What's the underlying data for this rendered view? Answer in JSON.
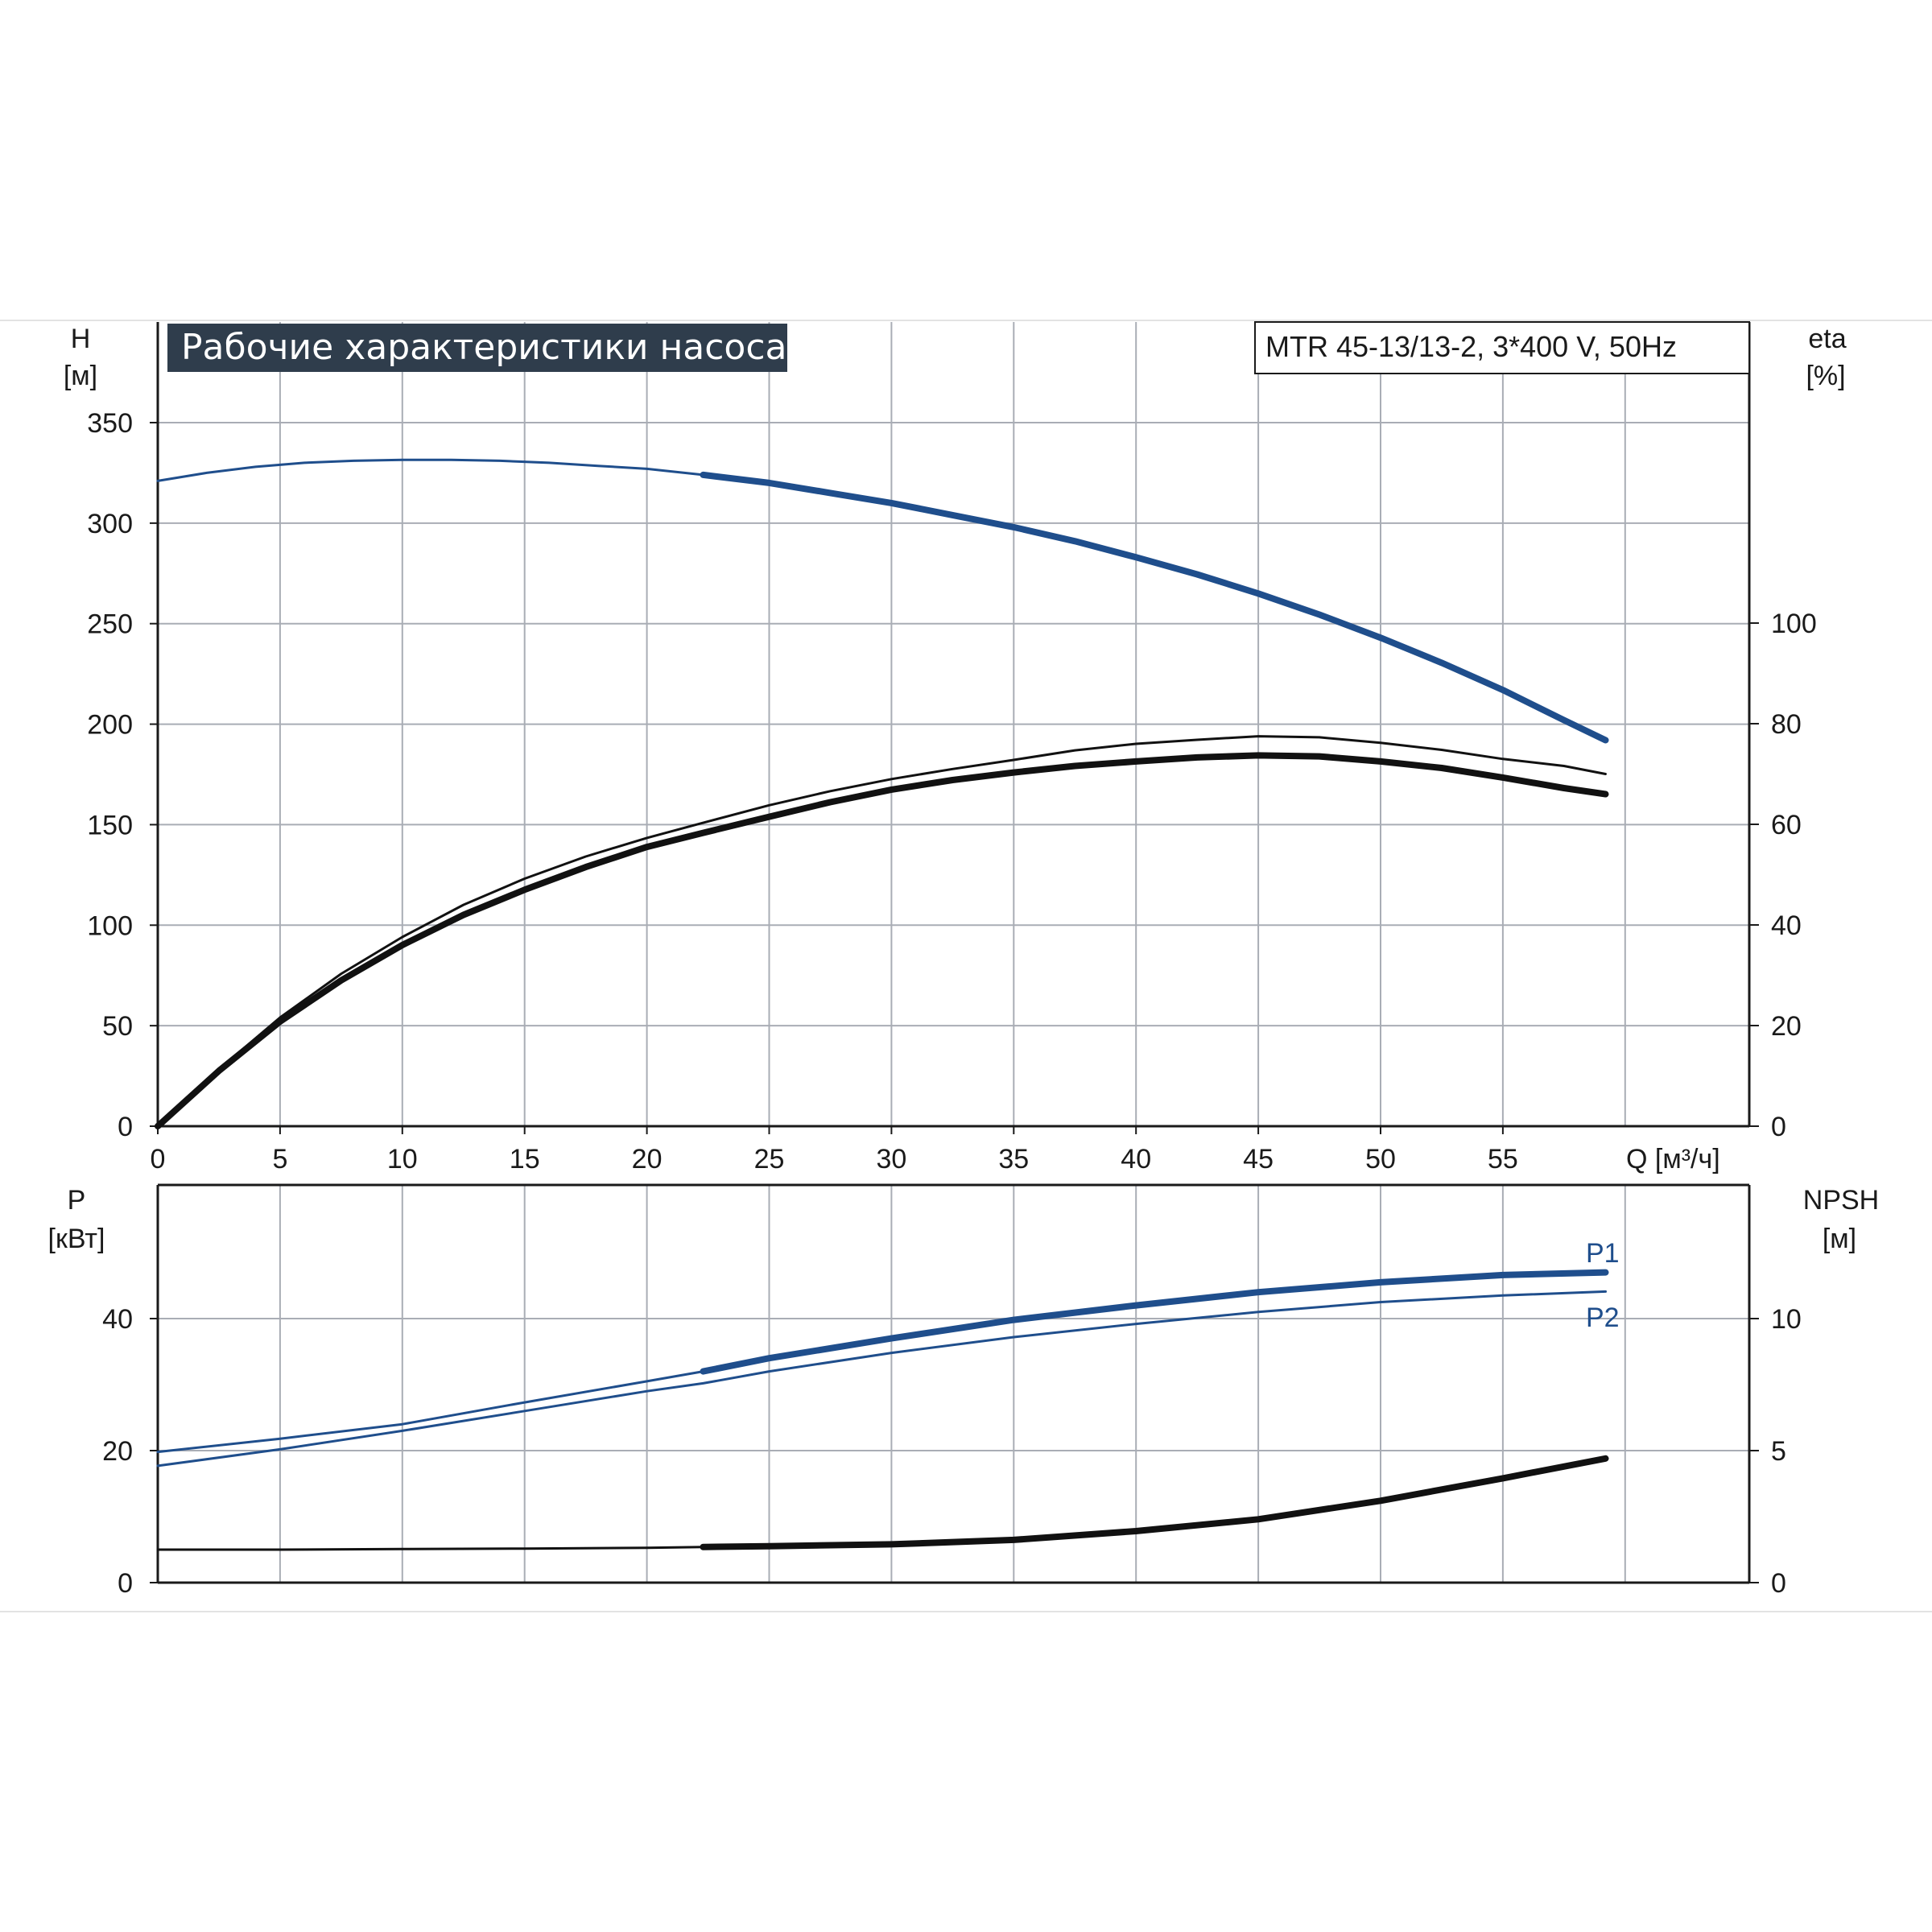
{
  "title": "Рабочие характеристики насоса",
  "model": "MTR 45-13/13-2, 3*400 V, 50Hz",
  "colors": {
    "blue": "#1f4e8c",
    "black": "#111111",
    "grid": "#a9adb5",
    "title_bg": "#2f3d4c"
  },
  "chart_data": [
    {
      "type": "line",
      "name": "upper",
      "y_label_left": [
        "H",
        "[м]"
      ],
      "y_label_right": [
        "eta",
        "[%]"
      ],
      "x_label": "Q [м³/ч]",
      "xlim": [
        0,
        65
      ],
      "ylim": [
        0,
        350
      ],
      "y2lim": [
        0,
        100
      ],
      "x_ticks": [
        0,
        5,
        10,
        15,
        20,
        25,
        30,
        35,
        40,
        45,
        50,
        55
      ],
      "x_tick_labels": [
        "0",
        "5",
        "10",
        "15",
        "20",
        "25",
        "30",
        "35",
        "40",
        "45",
        "50",
        "55"
      ],
      "y_ticks": [
        0,
        50,
        100,
        150,
        200,
        250,
        300,
        350
      ],
      "y2_ticks": [
        0,
        20,
        40,
        60,
        80,
        100
      ],
      "grid": true,
      "series": [
        {
          "axis": "left",
          "color": "blue",
          "bold_from": 22.3,
          "x": [
            0,
            2,
            4,
            6,
            8,
            10,
            12,
            14,
            16,
            18,
            20,
            22.3,
            25,
            27.5,
            30,
            32.5,
            35,
            37.5,
            40,
            42.5,
            45,
            47.5,
            50,
            52.5,
            55,
            57.5,
            59.2
          ],
          "y": [
            321,
            325,
            328,
            330,
            331,
            331.5,
            331.5,
            331,
            330,
            328.5,
            327,
            324,
            320,
            315,
            310,
            304,
            298,
            291,
            283,
            274.5,
            265,
            254.5,
            243,
            230.5,
            217,
            202,
            192
          ]
        },
        {
          "axis": "right",
          "color": "black",
          "bold_from": 0,
          "x": [
            0,
            2.5,
            5,
            7.5,
            10,
            12.5,
            15,
            17.5,
            20,
            22.3,
            25,
            27.5,
            30,
            32.5,
            35,
            37.5,
            40,
            42.5,
            45,
            47.5,
            50,
            52.5,
            55,
            57.5,
            59.2
          ],
          "y": [
            0,
            11,
            20.8,
            29,
            36,
            42,
            47,
            51.5,
            55.5,
            58.3,
            61.5,
            64.4,
            66.9,
            68.8,
            70.3,
            71.6,
            72.5,
            73.3,
            73.7,
            73.5,
            72.5,
            71.2,
            69.3,
            67.2,
            66
          ]
        },
        {
          "axis": "right",
          "color": "black",
          "bold_from": 59.5,
          "x": [
            0,
            2.5,
            5,
            7.5,
            10,
            12.5,
            15,
            17.5,
            20,
            22.3,
            25,
            27.5,
            30,
            32.5,
            35,
            37.5,
            40,
            42.5,
            45,
            47.5,
            50,
            52.5,
            55,
            57.5,
            59.2
          ],
          "y": [
            0,
            11.3,
            21.6,
            30.3,
            37.6,
            44,
            49.2,
            53.6,
            57.3,
            60.3,
            63.8,
            66.6,
            69,
            71,
            72.8,
            74.7,
            76,
            76.8,
            77.5,
            77.3,
            76.2,
            74.8,
            73,
            71.6,
            70
          ]
        }
      ]
    },
    {
      "type": "line",
      "name": "lower",
      "y_label_left": [
        "P",
        "[кВт]"
      ],
      "y_label_right": [
        "NPSH",
        "[м]"
      ],
      "xlim": [
        0,
        65
      ],
      "ylim": [
        0,
        60
      ],
      "y2lim": [
        0,
        15
      ],
      "y_ticks": [
        0,
        20,
        40
      ],
      "y2_ticks": [
        0,
        5,
        10
      ],
      "grid": true,
      "series": [
        {
          "name": "P1",
          "axis": "left",
          "color": "blue",
          "bold_from": 22.3,
          "x": [
            0,
            5,
            10,
            15,
            20,
            22.3,
            25,
            30,
            35,
            40,
            45,
            50,
            55,
            59.2
          ],
          "y": [
            19.8,
            21.8,
            24,
            27.3,
            30.5,
            32,
            34,
            37,
            39.8,
            42,
            44,
            45.5,
            46.6,
            47
          ]
        },
        {
          "name": "P2",
          "axis": "left",
          "color": "blue",
          "bold_from": 99,
          "x": [
            0,
            5,
            10,
            15,
            20,
            22.3,
            25,
            30,
            35,
            40,
            45,
            50,
            55,
            59.2
          ],
          "y": [
            17.7,
            20.2,
            23,
            26,
            29,
            30.2,
            32,
            34.8,
            37.2,
            39.2,
            41,
            42.5,
            43.5,
            44.1
          ]
        },
        {
          "name": "NPSH",
          "axis": "right",
          "color": "black",
          "bold_from": 22.3,
          "x": [
            0,
            5,
            10,
            15,
            20,
            22.3,
            25,
            30,
            35,
            40,
            45,
            50,
            55,
            59.2
          ],
          "y": [
            1.25,
            1.25,
            1.27,
            1.29,
            1.32,
            1.35,
            1.38,
            1.45,
            1.62,
            1.95,
            2.4,
            3.1,
            3.95,
            4.7
          ]
        }
      ]
    }
  ]
}
